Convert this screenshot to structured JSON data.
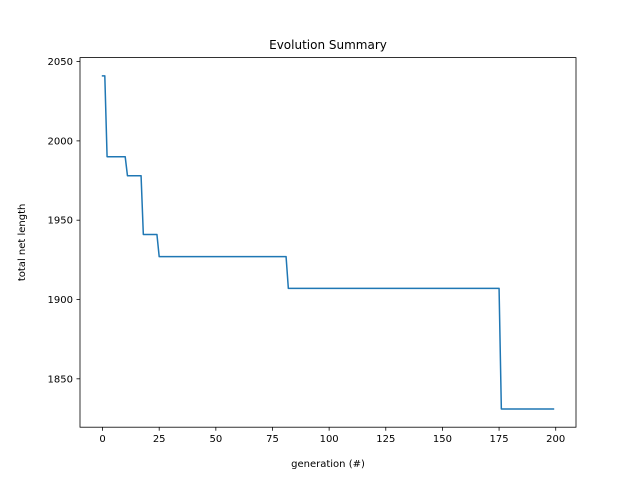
{
  "chart_data": {
    "type": "line",
    "title": "Evolution Summary",
    "xlabel": "generation (#)",
    "ylabel": "total net length",
    "xlim": [
      -9.95,
      208.95
    ],
    "ylim": [
      1819.5,
      2052.5
    ],
    "xticks": [
      0,
      25,
      50,
      75,
      100,
      125,
      150,
      175,
      200
    ],
    "xtick_labels": [
      "0",
      "25",
      "50",
      "75",
      "100",
      "125",
      "150",
      "175",
      "200"
    ],
    "yticks": [
      1850,
      1900,
      1950,
      2000,
      2050
    ],
    "ytick_labels": [
      "1850",
      "1900",
      "1950",
      "2000",
      "2050"
    ],
    "grid": false,
    "legend": "none",
    "series": [
      {
        "color": "#1f77b4",
        "x": [
          0,
          1,
          2,
          10,
          11,
          17,
          18,
          24,
          25,
          81,
          82,
          175,
          176,
          199
        ],
        "y": [
          2041,
          2041,
          1990,
          1990,
          1978,
          1978,
          1941,
          1941,
          1927,
          1927,
          1907,
          1907,
          1831,
          1831
        ]
      }
    ]
  }
}
